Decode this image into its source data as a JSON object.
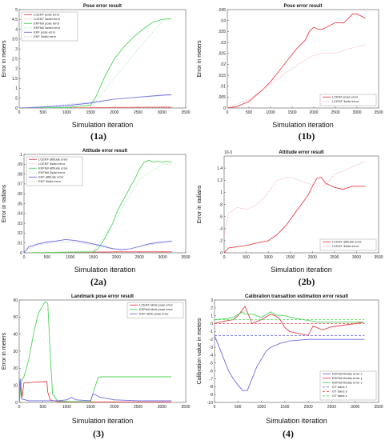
{
  "panel_labels": [
    "(1a)",
    "(1b)",
    "(2a)",
    "(2b)",
    "(3)",
    "(4)"
  ],
  "chart_data": [
    {
      "id": "1a",
      "type": "line",
      "title": "Pose error result",
      "xlabel": "Simulation iteration",
      "ylabel": "Error in meters",
      "xlim": [
        0,
        3500
      ],
      "ylim": [
        0,
        5
      ],
      "xticks": [
        0,
        500,
        1000,
        1500,
        2000,
        2500,
        3000,
        3500
      ],
      "yticks": [
        0,
        0.5,
        1,
        1.5,
        2,
        2.5,
        3,
        3.5,
        4,
        4.5,
        5
      ],
      "legend_position": "top-left",
      "series": [
        {
          "name": "LCEKF pose error",
          "color": "#e8424a",
          "dash": "solid",
          "x": [
            0,
            1000,
            2000,
            3200
          ],
          "y": [
            0,
            0.01,
            0.03,
            0.04
          ]
        },
        {
          "name": "LCEKF 3sdid error",
          "color": "#f4a0a5",
          "dash": "dotted",
          "x": [
            0,
            1000,
            2000,
            3200
          ],
          "y": [
            0,
            0.01,
            0.02,
            0.03
          ]
        },
        {
          "name": "EKFfull pose error",
          "color": "#4ed45a",
          "dash": "solid",
          "x": [
            0,
            1000,
            1500,
            1600,
            1800,
            2000,
            2200,
            2400,
            2600,
            2800,
            3000,
            3200
          ],
          "y": [
            0,
            0.02,
            0.15,
            0.5,
            1.6,
            2.5,
            3.1,
            3.6,
            4.0,
            4.35,
            4.5,
            4.55
          ]
        },
        {
          "name": "EKFfull 3sdid error",
          "color": "#a8e8ae",
          "dash": "dotted",
          "x": [
            0,
            1500,
            1600,
            2000,
            2500,
            3000,
            3200
          ],
          "y": [
            0,
            0.1,
            0.3,
            1.5,
            3.0,
            4.4,
            4.5
          ]
        },
        {
          "name": "EKF pose error",
          "color": "#6a6ae0",
          "dash": "solid",
          "x": [
            0,
            500,
            1000,
            1500,
            2000,
            2500,
            3000,
            3200
          ],
          "y": [
            0,
            0.05,
            0.12,
            0.25,
            0.45,
            0.55,
            0.65,
            0.68
          ]
        },
        {
          "name": "EKF 3sdid error",
          "color": "#b0b0f0",
          "dash": "dotted",
          "x": [
            0,
            500,
            1000,
            1500,
            2000,
            2500,
            3000,
            3200
          ],
          "y": [
            0,
            0.08,
            0.18,
            0.3,
            0.45,
            0.55,
            0.62,
            0.65
          ]
        }
      ]
    },
    {
      "id": "1b",
      "type": "line",
      "title": "Pose error result",
      "xlabel": "Simulation iteration",
      "ylabel": "Error in meters",
      "xlim": [
        0,
        3500
      ],
      "ylim": [
        0,
        0.045
      ],
      "xticks": [
        0,
        500,
        1000,
        1500,
        2000,
        2500,
        3000,
        3500
      ],
      "yticks": [
        0,
        0.005,
        0.01,
        0.015,
        0.02,
        0.025,
        0.03,
        0.035,
        0.04,
        0.045
      ],
      "legend_position": "bottom-right",
      "series": [
        {
          "name": "LCEKF pose error",
          "color": "#e8424a",
          "dash": "solid",
          "x": [
            0,
            200,
            500,
            800,
            1000,
            1200,
            1400,
            1600,
            1800,
            1900,
            2000,
            2100,
            2200,
            2400,
            2500,
            2700,
            2800,
            2900,
            3000,
            3100,
            3200
          ],
          "y": [
            0,
            0.0005,
            0.003,
            0.008,
            0.012,
            0.017,
            0.022,
            0.027,
            0.031,
            0.035,
            0.037,
            0.036,
            0.036,
            0.038,
            0.039,
            0.039,
            0.041,
            0.043,
            0.043,
            0.042,
            0.041
          ]
        },
        {
          "name": "LCEKF 3sdid error",
          "color": "#f4a0a5",
          "dash": "dotted",
          "x": [
            0,
            500,
            1000,
            1500,
            1800,
            2000,
            2200,
            2500,
            2800,
            3000,
            3200
          ],
          "y": [
            0,
            0.004,
            0.011,
            0.018,
            0.022,
            0.024,
            0.025,
            0.025,
            0.027,
            0.028,
            0.029
          ]
        }
      ]
    },
    {
      "id": "2a",
      "type": "line",
      "title": "Attitude error result",
      "xlabel": "Simulation iteration",
      "ylabel": "Error in radians",
      "xlim": [
        0,
        3500
      ],
      "ylim": [
        0,
        0.1
      ],
      "xticks": [
        0,
        500,
        1000,
        1500,
        2000,
        2500,
        3000,
        3500
      ],
      "yticks": [
        0,
        0.01,
        0.02,
        0.03,
        0.04,
        0.05,
        0.06,
        0.07,
        0.08,
        0.09,
        0.1
      ],
      "legend_position": "top-left",
      "series": [
        {
          "name": "LCEKF attitude error",
          "color": "#e8424a",
          "dash": "solid",
          "x": [
            0,
            1000,
            2000,
            3200
          ],
          "y": [
            0,
            0.0005,
            0.001,
            0.001
          ]
        },
        {
          "name": "LCEKF 3sdid error",
          "color": "#f4a0a5",
          "dash": "dotted",
          "x": [
            0,
            1000,
            2000,
            3200
          ],
          "y": [
            0,
            0.0008,
            0.0012,
            0.0015
          ]
        },
        {
          "name": "EKFfull attitude error",
          "color": "#4ed45a",
          "dash": "solid",
          "x": [
            0,
            1500,
            1600,
            1700,
            1800,
            1900,
            2000,
            2100,
            2200,
            2300,
            2400,
            2500,
            2600,
            2700,
            2800,
            2900,
            3000,
            3100,
            3200
          ],
          "y": [
            0,
            0.001,
            0.004,
            0.011,
            0.019,
            0.028,
            0.04,
            0.05,
            0.058,
            0.067,
            0.075,
            0.085,
            0.092,
            0.094,
            0.092,
            0.093,
            0.092,
            0.093,
            0.092
          ]
        },
        {
          "name": "EKFfull 3sdid error",
          "color": "#a8e8ae",
          "dash": "dotted",
          "x": [
            0,
            1500,
            2000,
            2500,
            3000,
            3200
          ],
          "y": [
            0,
            0.002,
            0.035,
            0.075,
            0.09,
            0.09
          ]
        },
        {
          "name": "EKF attitude error",
          "color": "#6a6ae0",
          "dash": "solid",
          "x": [
            0,
            100,
            300,
            500,
            700,
            900,
            1100,
            1300,
            1500,
            1700,
            1900,
            2100,
            2300,
            2500,
            2700,
            2900,
            3100,
            3200
          ],
          "y": [
            0,
            0.006,
            0.009,
            0.011,
            0.012,
            0.0135,
            0.0125,
            0.011,
            0.009,
            0.007,
            0.0045,
            0.003,
            0.004,
            0.0065,
            0.009,
            0.0105,
            0.0115,
            0.012
          ]
        },
        {
          "name": "EKF 3sdid error",
          "color": "#b0b0f0",
          "dash": "dotted",
          "x": [
            0,
            300,
            700,
            1100,
            1500,
            1900,
            2300,
            2700,
            3100,
            3200
          ],
          "y": [
            0.002,
            0.008,
            0.011,
            0.011,
            0.008,
            0.004,
            0.004,
            0.008,
            0.011,
            0.011
          ]
        }
      ]
    },
    {
      "id": "2b",
      "type": "line",
      "title": "Attitude error result",
      "xlabel": "Simulation iteration",
      "ylabel": "Error in radians",
      "y_multiplier": "10^-3",
      "xlim": [
        0,
        3500
      ],
      "ylim": [
        0,
        1.6
      ],
      "xticks": [
        0,
        500,
        1000,
        1500,
        2000,
        2500,
        3000,
        3500
      ],
      "yticks": [
        0,
        0.2,
        0.4,
        0.6,
        0.8,
        1,
        1.2,
        1.4
      ],
      "legend_position": "bottom-right",
      "series": [
        {
          "name": "LCEKF attitude error",
          "color": "#e8424a",
          "dash": "solid",
          "x": [
            0,
            100,
            300,
            500,
            800,
            1000,
            1200,
            1400,
            1600,
            1800,
            1900,
            2000,
            2100,
            2200,
            2300,
            2500,
            2700,
            2900,
            3100,
            3200
          ],
          "y": [
            0,
            0.08,
            0.1,
            0.12,
            0.17,
            0.2,
            0.3,
            0.45,
            0.65,
            0.85,
            0.95,
            1.1,
            1.23,
            1.25,
            1.15,
            1.08,
            1.05,
            1.1,
            1.1,
            1.1
          ]
        },
        {
          "name": "LCEKF 3sdid error",
          "color": "#f4a0a5",
          "dash": "dotted",
          "x": [
            0,
            100,
            300,
            500,
            700,
            900,
            1100,
            1200,
            1300,
            1500,
            1700,
            1900,
            2100,
            2300,
            2500,
            2700,
            2900,
            3100,
            3200
          ],
          "y": [
            0.3,
            0.65,
            0.75,
            0.72,
            0.78,
            0.9,
            1.1,
            1.2,
            1.22,
            1.25,
            1.2,
            1.15,
            1.1,
            1.12,
            1.3,
            1.35,
            1.42,
            1.48,
            1.52
          ]
        }
      ]
    },
    {
      "id": "3",
      "type": "line",
      "title": "Landmark pose error result",
      "xlabel": "Simulation iteration",
      "ylabel": "Error in meters",
      "xlim": [
        0,
        3500
      ],
      "ylim": [
        0,
        60
      ],
      "xticks": [
        0,
        500,
        1000,
        1500,
        2000,
        2500,
        3000,
        3500
      ],
      "yticks": [
        0,
        10,
        20,
        30,
        40,
        50,
        60
      ],
      "legend_position": "top-right",
      "series": [
        {
          "name": "LCEKF ldmk pose error",
          "color": "#e8424a",
          "dash": "solid",
          "x": [
            0,
            30,
            60,
            100,
            300,
            580,
            600,
            650,
            800,
            1000,
            1500,
            2000,
            2500,
            3000,
            3200
          ],
          "y": [
            0,
            11,
            3,
            11.5,
            11.8,
            12.2,
            6,
            1.5,
            0.5,
            0.3,
            0.3,
            0.3,
            0.3,
            0.3,
            0.3
          ]
        },
        {
          "name": "EKFfull ldmk pose error",
          "color": "#4ed45a",
          "dash": "solid",
          "x": [
            0,
            50,
            100,
            200,
            300,
            400,
            500,
            550,
            600,
            650,
            700,
            800,
            1000,
            1500,
            1550,
            1650,
            1700,
            2000,
            2500,
            3000,
            3200
          ],
          "y": [
            0,
            13,
            15,
            25,
            40,
            52,
            57,
            59,
            58,
            30,
            5,
            1,
            0.5,
            0.5,
            5,
            14,
            15,
            15,
            15,
            15,
            15
          ]
        },
        {
          "name": "EKF ldmk pose error",
          "color": "#6a6ae0",
          "dash": "solid",
          "x": [
            0,
            20,
            50,
            200,
            500,
            800,
            1000,
            1100,
            1200,
            1500,
            1550,
            1600,
            1700,
            2000,
            2500,
            3000,
            3200
          ],
          "y": [
            0,
            14,
            2,
            1,
            1,
            1,
            1.5,
            3,
            1.5,
            1,
            5,
            4.5,
            3,
            1.5,
            1,
            1,
            1
          ]
        }
      ]
    },
    {
      "id": "4",
      "type": "line",
      "title": "Calibration transaltion estimation error result",
      "xlabel": "Simulation iteration",
      "ylabel": "Calibration value in meters",
      "xlim": [
        0,
        3500
      ],
      "ylim": [
        -10,
        3
      ],
      "xticks": [
        0,
        500,
        1000,
        1500,
        2000,
        2500,
        3000,
        3500
      ],
      "yticks": [
        -10,
        -9,
        -8,
        -7,
        -6,
        -5,
        -4,
        -3,
        -2,
        -1,
        0,
        1,
        2,
        3
      ],
      "legend_position": "bottom-right",
      "series": [
        {
          "name": "EKFfull thetas error x",
          "color": "#6a6ae0",
          "dash": "solid",
          "x": [
            0,
            100,
            200,
            300,
            400,
            500,
            600,
            700,
            800,
            900,
            1000,
            1100,
            1200,
            1400,
            1600,
            2000,
            2500,
            3000,
            3200
          ],
          "y": [
            -1.5,
            -3,
            -4.5,
            -6,
            -7,
            -7.8,
            -8.5,
            -8.5,
            -7,
            -5.5,
            -4.5,
            -3.5,
            -3,
            -2.5,
            -2.2,
            -2,
            -2,
            -2,
            -2
          ]
        },
        {
          "name": "EKFfull thetas error y",
          "color": "#e8424a",
          "dash": "solid",
          "x": [
            0,
            200,
            400,
            500,
            600,
            650,
            700,
            800,
            1000,
            1200,
            1300,
            1400,
            1500,
            1600,
            2000,
            2100,
            2300,
            2500,
            3000,
            3200
          ],
          "y": [
            0,
            0.3,
            0.5,
            1,
            1.8,
            2.2,
            1.5,
            0,
            0.5,
            1.2,
            1,
            0.5,
            -0.5,
            -1,
            -1.5,
            -0.3,
            -0.8,
            -0.4,
            0,
            0.2
          ]
        },
        {
          "name": "EKFfull thetas error z",
          "color": "#4ed45a",
          "dash": "solid",
          "x": [
            0,
            200,
            400,
            600,
            650,
            800,
            1000,
            1200,
            1300,
            1500,
            1700,
            2000,
            2200,
            2500,
            3000,
            3200
          ],
          "y": [
            0.5,
            0.6,
            0.8,
            1.5,
            1.2,
            1.2,
            0.8,
            1.5,
            1.1,
            1,
            0.7,
            0.4,
            0.2,
            0.2,
            0.2,
            0.2
          ]
        },
        {
          "name": "GT trans x",
          "color": "#6a6ae0",
          "dash": "dashed",
          "x": [
            0,
            3200
          ],
          "y": [
            -1.5,
            -1.5
          ]
        },
        {
          "name": "GT trans y",
          "color": "#e8424a",
          "dash": "dashed",
          "x": [
            0,
            3200
          ],
          "y": [
            0,
            0
          ]
        },
        {
          "name": "GT trans z",
          "color": "#4ed45a",
          "dash": "dashed",
          "x": [
            0,
            3200
          ],
          "y": [
            0.5,
            0.5
          ]
        }
      ]
    }
  ]
}
